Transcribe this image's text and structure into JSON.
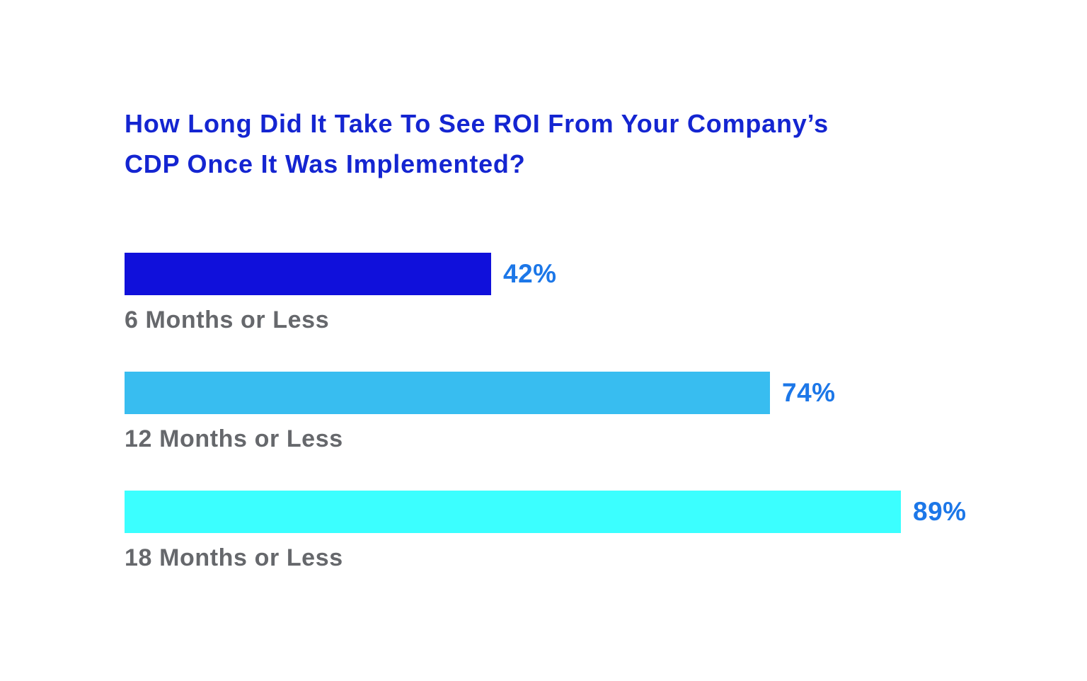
{
  "background_color": "#ffffff",
  "title_lines": [
    "How Long Did It Take To See ROI From Your Company’s",
    "CDP Once It Was Implemented?"
  ],
  "chart_data": {
    "type": "bar",
    "orientation": "horizontal",
    "title": "How Long Did It Take To See ROI From Your Company’s CDP Once It Was Implemented?",
    "categories": [
      "6 Months or Less",
      "12 Months or Less",
      "18 Months or Less"
    ],
    "values": [
      42,
      74,
      89
    ],
    "value_labels": [
      "42%",
      "74%",
      "89%"
    ],
    "bar_colors": [
      "#1010db",
      "#38bdf0",
      "#3bffff"
    ],
    "title_color": "#1425d1",
    "value_label_color": "#1c77e8",
    "category_label_color": "#66686c",
    "xlim": [
      0,
      100
    ],
    "grid": false,
    "legend": false,
    "value_label_position": "right-of-bar",
    "category_label_position": "below-bar"
  }
}
